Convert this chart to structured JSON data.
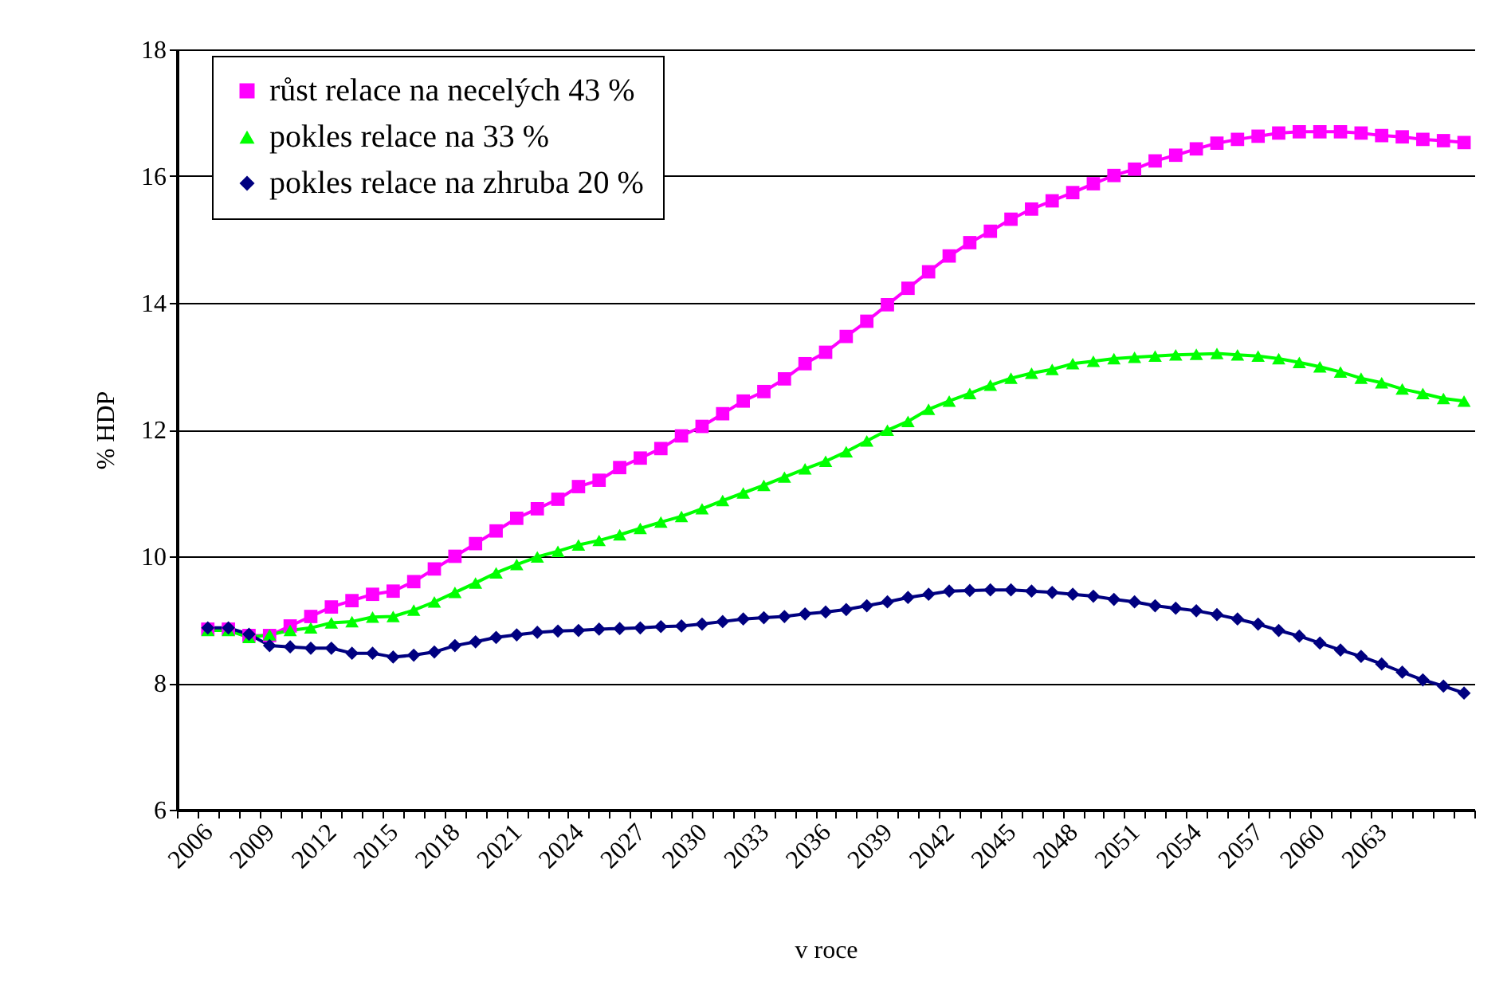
{
  "chart_data": {
    "type": "line",
    "xlabel": "v roce",
    "ylabel": "% HDP",
    "categories": [
      null,
      "2006",
      null,
      null,
      "2009",
      null,
      null,
      "2012",
      null,
      null,
      "2015",
      null,
      null,
      "2018",
      null,
      null,
      "2021",
      null,
      null,
      "2024",
      null,
      null,
      "2027",
      null,
      null,
      "2030",
      null,
      null,
      "2033",
      null,
      null,
      "2036",
      null,
      null,
      "2039",
      null,
      null,
      "2042",
      null,
      null,
      "2045",
      null,
      null,
      "2048",
      null,
      null,
      "2051",
      null,
      null,
      "2054",
      null,
      null,
      "2057",
      null,
      null,
      "2060",
      null,
      null,
      "2063",
      null,
      null,
      null,
      null
    ],
    "series": [
      {
        "name": "růst relace na necelých 43 %",
        "color": "#ff00ff",
        "marker": "square",
        "values": [
          null,
          8.85,
          8.85,
          8.75,
          8.75,
          8.9,
          9.05,
          9.2,
          9.3,
          9.4,
          9.45,
          9.6,
          9.8,
          10.0,
          10.2,
          10.4,
          10.6,
          10.75,
          10.9,
          11.1,
          11.2,
          11.4,
          11.55,
          11.7,
          11.9,
          12.05,
          12.25,
          12.45,
          12.6,
          12.8,
          13.04,
          13.22,
          13.47,
          13.71,
          13.97,
          14.23,
          14.49,
          14.74,
          14.95,
          15.13,
          15.32,
          15.48,
          15.61,
          15.74,
          15.88,
          16.01,
          16.11,
          16.24,
          16.33,
          16.43,
          16.52,
          16.58,
          16.63,
          16.68,
          16.7,
          16.7,
          16.7,
          16.68,
          16.64,
          16.62,
          16.58,
          16.56,
          16.53
        ]
      },
      {
        "name": "pokles relace na 33 %",
        "color": "#00ff00",
        "marker": "triangle",
        "values": [
          null,
          8.83,
          8.83,
          8.72,
          8.76,
          8.83,
          8.87,
          8.95,
          8.97,
          9.04,
          9.05,
          9.15,
          9.28,
          9.43,
          9.58,
          9.74,
          9.87,
          9.99,
          10.08,
          10.18,
          10.25,
          10.34,
          10.44,
          10.54,
          10.63,
          10.75,
          10.88,
          11.0,
          11.12,
          11.25,
          11.38,
          11.5,
          11.65,
          11.82,
          11.99,
          12.13,
          12.32,
          12.45,
          12.57,
          12.7,
          12.81,
          12.89,
          12.95,
          13.04,
          13.08,
          13.12,
          13.14,
          13.16,
          13.18,
          13.19,
          13.2,
          13.18,
          13.16,
          13.12,
          13.06,
          12.99,
          12.91,
          12.81,
          12.74,
          12.64,
          12.57,
          12.49,
          12.45
        ]
      },
      {
        "name": "pokles relace na zhruba 20 %",
        "color": "#000080",
        "marker": "diamond",
        "values": [
          null,
          8.87,
          8.87,
          8.77,
          8.59,
          8.57,
          8.55,
          8.55,
          8.47,
          8.47,
          8.41,
          8.44,
          8.49,
          8.59,
          8.65,
          8.72,
          8.76,
          8.8,
          8.82,
          8.83,
          8.85,
          8.86,
          8.87,
          8.89,
          8.9,
          8.93,
          8.97,
          9.01,
          9.03,
          9.05,
          9.09,
          9.12,
          9.16,
          9.22,
          9.28,
          9.35,
          9.4,
          9.45,
          9.46,
          9.47,
          9.47,
          9.45,
          9.43,
          9.4,
          9.37,
          9.32,
          9.28,
          9.22,
          9.18,
          9.14,
          9.08,
          9.01,
          8.93,
          8.83,
          8.74,
          8.63,
          8.52,
          8.42,
          8.3,
          8.17,
          8.05,
          7.95,
          7.84
        ]
      }
    ],
    "ylim": [
      6,
      18
    ],
    "yticks": [
      6,
      8,
      10,
      12,
      14,
      16,
      18
    ],
    "grid": "y",
    "legend": "top left",
    "line_style": "solid"
  }
}
